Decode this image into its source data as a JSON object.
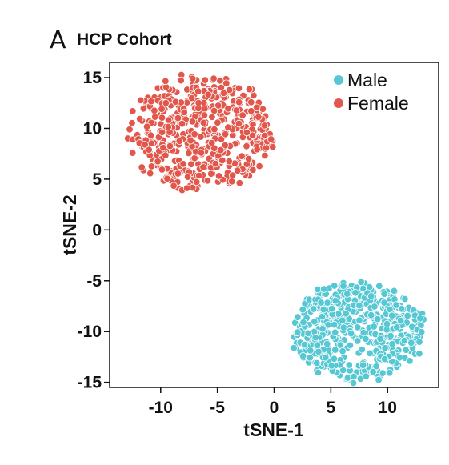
{
  "panel": {
    "letter": "A",
    "title": "HCP Cohort"
  },
  "chart_data": {
    "type": "scatter",
    "xlabel": "tSNE-1",
    "ylabel": "tSNE-2",
    "xlim": [
      -14.5,
      14.5
    ],
    "ylim": [
      -15.5,
      16.5
    ],
    "x_ticks": [
      -10,
      -5,
      0,
      5,
      10
    ],
    "y_ticks": [
      -15,
      -10,
      -5,
      0,
      5,
      10,
      15
    ],
    "grid": false,
    "legend_position": "top-right",
    "series": [
      {
        "name": "Male",
        "color": "#56C8D3",
        "cluster": {
          "center": [
            7.5,
            -10.0
          ],
          "x_range": [
            1.5,
            13.5
          ],
          "y_range": [
            -14.5,
            -4.5
          ],
          "point_count": 520
        }
      },
      {
        "name": "Female",
        "color": "#E2574C",
        "cluster": {
          "center": [
            -6.5,
            9.5
          ],
          "x_range": [
            -13.0,
            0.0
          ],
          "y_range": [
            3.5,
            15.0
          ],
          "point_count": 520
        }
      }
    ]
  }
}
